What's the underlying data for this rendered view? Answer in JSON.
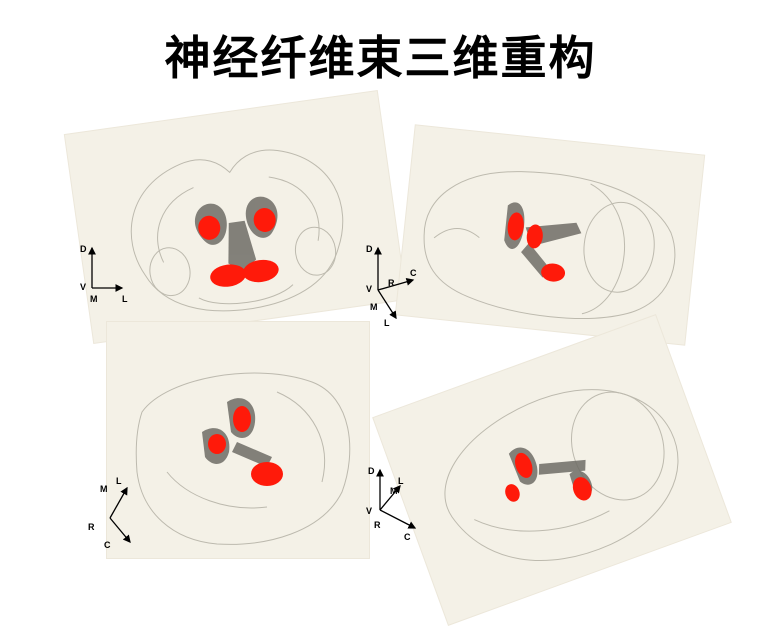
{
  "title": "神经纤维束三维重构",
  "panels": [
    {
      "id": "frontal",
      "axes": {
        "up": "D",
        "down": "V",
        "left": "M",
        "right": "L"
      }
    },
    {
      "id": "lateral",
      "axes": {
        "up": "D",
        "down": "V",
        "right": "C",
        "diag1": "R",
        "diag2": "M",
        "diag3": "L"
      }
    },
    {
      "id": "ventral",
      "axes": {
        "top1": "M",
        "top2": "L",
        "bot1": "R",
        "bot2": "C"
      }
    },
    {
      "id": "oblique",
      "axes": {
        "up": "D",
        "down": "V",
        "right": "C",
        "diag1": "M",
        "diag2": "L",
        "diag3": "R"
      }
    }
  ],
  "colors": {
    "panel_bg": "#f4f1e7",
    "tract": "#ff1a0a",
    "outline": "#9a9a90"
  }
}
